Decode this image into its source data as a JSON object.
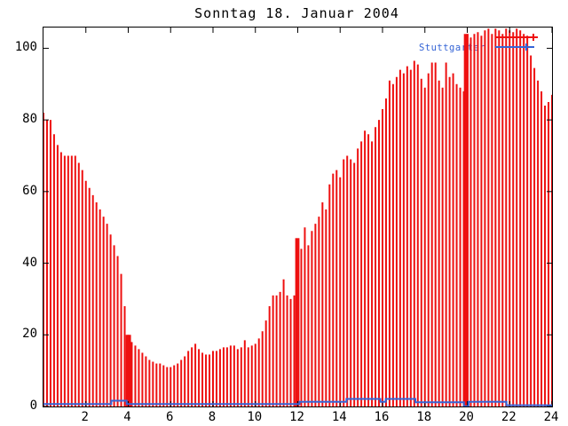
{
  "chart_data": {
    "type": "bar",
    "style_note": "impulse bars every 10 minutes plus low step line",
    "title": "Sonntag 18. Januar 2004",
    "xlabel": "",
    "ylabel": "",
    "x_range": [
      0,
      24
    ],
    "y_range": [
      0,
      105.8
    ],
    "x_ticks": [
      2,
      4,
      6,
      8,
      10,
      12,
      14,
      16,
      18,
      20,
      22,
      24
    ],
    "y_ticks": [
      0,
      20,
      40,
      60,
      80,
      100
    ],
    "x_step_hours": 0.16667,
    "colors": {
      "red_series": "#ee1010",
      "blue_series": "#3464d6",
      "axis": "#000000",
      "background": "#ffffff",
      "title": "#000000"
    },
    "legend": {
      "position": "top-right-inside",
      "entries": [
        {
          "label": "",
          "color": "#ee1010",
          "note_label_hidden_behind_bars": true
        },
        {
          "label": "Stuttgarter",
          "color": "#3464d6"
        }
      ]
    },
    "series": [
      {
        "name": "",
        "color": "#ee1010",
        "style": "impulses",
        "values": [
          82,
          80,
          80,
          76,
          73,
          71,
          70,
          70,
          70,
          70,
          68,
          66,
          63,
          61,
          59,
          57,
          55,
          53,
          51,
          48,
          45,
          42,
          37,
          28,
          20,
          18,
          17,
          16,
          15,
          14,
          13,
          12.5,
          12,
          12,
          11.5,
          11,
          11,
          11.5,
          12,
          13,
          14,
          15.5,
          16.5,
          17.5,
          16,
          15,
          14.5,
          14.5,
          15.5,
          15.5,
          16,
          16.5,
          16.5,
          17,
          17,
          16,
          16.5,
          18.5,
          16.5,
          17,
          17.5,
          19,
          21,
          24,
          28,
          31,
          31,
          32,
          35.5,
          31,
          30,
          31,
          46,
          44,
          50,
          45,
          49,
          51,
          53,
          57,
          55,
          62,
          65,
          66,
          64,
          69,
          70,
          69,
          68,
          72,
          74,
          77,
          76,
          74,
          78,
          80,
          83,
          86,
          91,
          90,
          92,
          94,
          93,
          95,
          94,
          96.5,
          95.5,
          91.5,
          89,
          93,
          96,
          96,
          91,
          89,
          96,
          92,
          93,
          90,
          89,
          88,
          104,
          103,
          104,
          104.5,
          103.5,
          105,
          105.5,
          104,
          105.5,
          105,
          104,
          105.5,
          105,
          104.5,
          105.5,
          105,
          104,
          103.5,
          98,
          94.5,
          91,
          88,
          84,
          85,
          87
        ]
      },
      {
        "name": "Stuttgarter",
        "color": "#3464d6",
        "style": "steps",
        "points": [
          [
            0,
            0.7
          ],
          [
            3.2,
            0.7
          ],
          [
            3.2,
            1.6
          ],
          [
            3.93,
            1.6
          ],
          [
            3.93,
            0.7
          ],
          [
            12.08,
            0.7
          ],
          [
            12.08,
            1.3
          ],
          [
            14.3,
            1.3
          ],
          [
            14.3,
            2.1
          ],
          [
            15.9,
            2.1
          ],
          [
            15.9,
            1.3
          ],
          [
            16.15,
            1.3
          ],
          [
            16.15,
            2.1
          ],
          [
            17.55,
            2.1
          ],
          [
            17.55,
            1.2
          ],
          [
            19.84,
            1.2
          ],
          [
            19.84,
            0.05
          ],
          [
            20.06,
            0.05
          ],
          [
            20.06,
            1.3
          ],
          [
            21.85,
            1.3
          ],
          [
            21.85,
            0.35
          ],
          [
            24,
            0.35
          ]
        ]
      }
    ],
    "solid_red_blocks": [
      {
        "from": 3.88,
        "to": 4.13,
        "value": 20
      },
      {
        "from": 11.88,
        "to": 12.08,
        "value": 47
      },
      {
        "from": 19.84,
        "to": 20.06,
        "value": 104
      }
    ]
  },
  "axis_labels": {
    "y": [
      "0",
      "20",
      "40",
      "60",
      "80",
      "100"
    ],
    "x": [
      "2",
      "4",
      "6",
      "8",
      "10",
      "12",
      "14",
      "16",
      "18",
      "20",
      "22",
      "24"
    ]
  }
}
